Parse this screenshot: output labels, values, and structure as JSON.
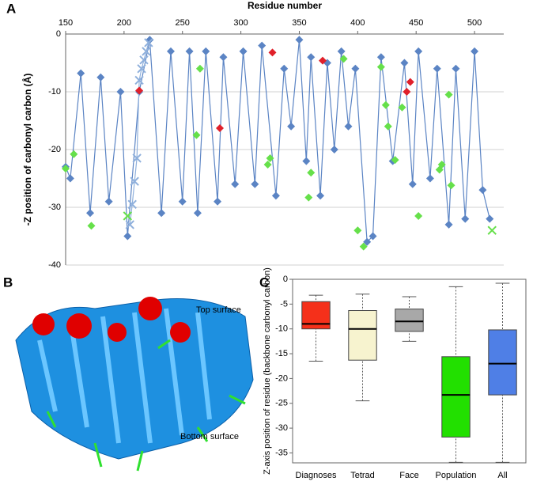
{
  "panels": {
    "A": "A",
    "B": "B",
    "C": "C"
  },
  "image_labels": [
    "Top surface",
    "Bottom surface"
  ],
  "chart_data": [
    {
      "type": "line",
      "xlabel": "Residue number",
      "ylabel": "-Z position of carbonyl carbon  (Å)",
      "xlim": [
        150,
        525
      ],
      "ylim": [
        -40,
        0
      ],
      "xticks": [
        150,
        200,
        250,
        300,
        350,
        400,
        450,
        500
      ],
      "yticks": [
        0,
        -10,
        -20,
        -30,
        -40
      ],
      "grid": true,
      "series": [
        {
          "color": "#5b84c4",
          "marker": "diamond",
          "lines": true,
          "x": [
            150,
            154,
            163,
            171,
            180,
            187,
            197,
            203,
            213,
            222,
            232,
            240,
            250,
            256,
            263,
            270,
            280,
            285,
            295,
            302,
            312,
            318,
            330,
            337,
            343,
            350,
            356,
            360,
            368,
            374,
            380,
            386,
            392,
            398,
            408,
            413,
            420,
            430,
            440,
            447,
            452,
            462,
            468,
            478,
            484,
            492,
            500,
            507,
            513
          ],
          "y": [
            -23,
            -25,
            -6.8,
            -31,
            -7.5,
            -29,
            -10,
            -35,
            -10,
            -1,
            -31,
            -3,
            -29,
            -3,
            -31,
            -3,
            -29,
            -4,
            -26,
            -3,
            -26,
            -2,
            -28,
            -6,
            -16,
            -1,
            -22,
            -4,
            -28,
            -5,
            -20,
            -3,
            -16,
            -6,
            -36,
            -35,
            -4,
            -22,
            -5,
            -26,
            -3,
            -25,
            -6,
            -33,
            -6,
            -32,
            -3,
            -27,
            -32
          ]
        },
        {
          "color": "#8fb0dc",
          "marker": "cross",
          "lines": true,
          "x": [
            205,
            207,
            209,
            211,
            213,
            215,
            217,
            219,
            221
          ],
          "y": [
            -33,
            -29.5,
            -25.5,
            -21.5,
            -8,
            -6,
            -4.5,
            -3,
            -1.5
          ]
        },
        {
          "color": "#66e04a",
          "marker": "diamond",
          "lines": false,
          "x": [
            150,
            157,
            172,
            265,
            262,
            325,
            323,
            360,
            358,
            388,
            400,
            405,
            420,
            424,
            426,
            432,
            438,
            452,
            470,
            472,
            480,
            478
          ],
          "y": [
            -23.3,
            -20.8,
            -33.2,
            -6,
            -17.5,
            -21.5,
            -22.6,
            -24,
            -28.3,
            -4.3,
            -34,
            -36.8,
            -5.7,
            -12.3,
            -16,
            -21.8,
            -12.7,
            -31.5,
            -23.5,
            -22.6,
            -26.2,
            -10.5
          ]
        },
        {
          "color": "#e0202a",
          "marker": "diamond",
          "lines": false,
          "x": [
            213,
            282,
            327,
            370,
            442,
            445
          ],
          "y": [
            -9.8,
            -16.3,
            -3.2,
            -4.6,
            -10,
            -8.3
          ]
        },
        {
          "color": "#66e04a",
          "marker": "cross",
          "lines": false,
          "x": [
            203,
            515
          ],
          "y": [
            -31.5,
            -34
          ]
        }
      ]
    },
    {
      "type": "box",
      "ylabel": "Z-axis position of residue (backbone carbonyl carbon)",
      "ylim": [
        -37,
        0
      ],
      "yticks": [
        0,
        -5,
        -10,
        -15,
        -20,
        -25,
        -30,
        -35
      ],
      "categories": [
        "Diagnoses",
        "Tetrad",
        "Face",
        "Population",
        "All"
      ],
      "min": [
        -16.5,
        -24.5,
        -12.5,
        -36.9,
        -36.9
      ],
      "q1": [
        -10,
        -16.3,
        -10.5,
        -31.8,
        -23.3
      ],
      "median": [
        -9,
        -10,
        -8.5,
        -23.3,
        -17
      ],
      "q3": [
        -4.5,
        -6.3,
        -6,
        -15.6,
        -10.2
      ],
      "max": [
        -3.2,
        -3,
        -3.5,
        -1.5,
        -0.8
      ],
      "colors": [
        "#f5301a",
        "#f7f3cf",
        "#a8a8a8",
        "#22e000",
        "#4f7fe6"
      ]
    }
  ]
}
